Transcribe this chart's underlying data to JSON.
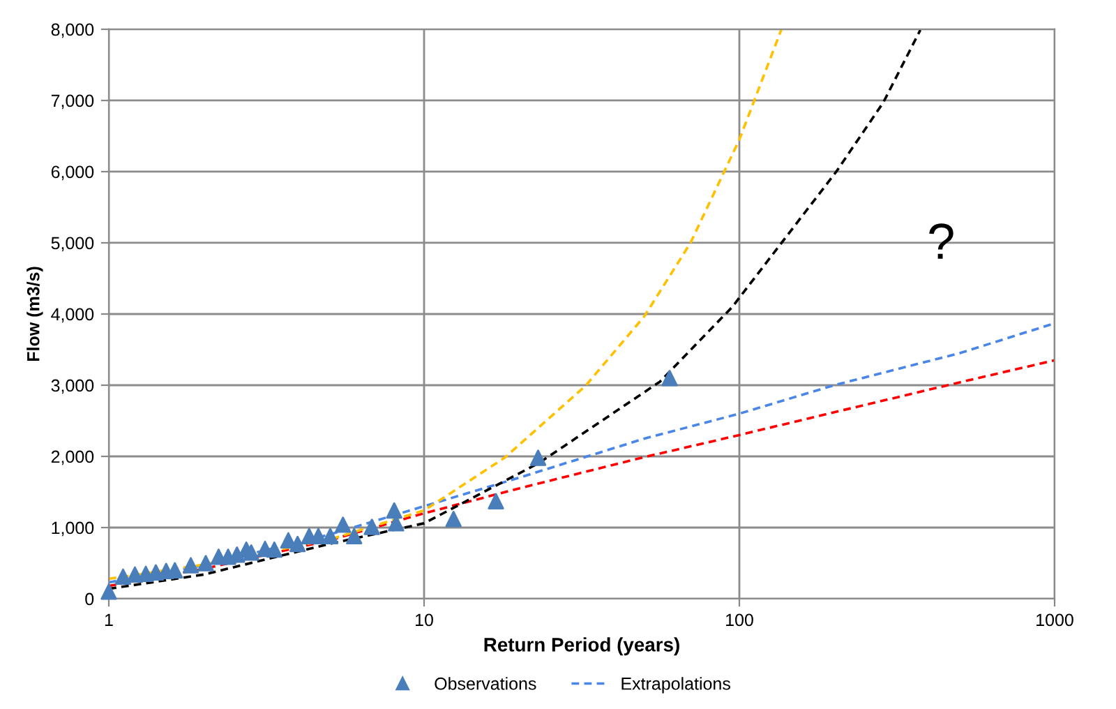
{
  "chart_data": {
    "type": "scatter",
    "xlabel": "Return Period (years)",
    "ylabel": "Flow (m3/s)",
    "log": "x",
    "xlim": [
      1,
      1000
    ],
    "xticks": [
      1,
      10,
      100,
      1000
    ],
    "ylim": [
      0,
      8000
    ],
    "yticks": [
      0,
      {
        "value": 1000,
        "label": "1,000"
      },
      {
        "value": 2000,
        "label": "2,000"
      },
      {
        "value": 3000,
        "label": "3,000"
      },
      {
        "value": 4000,
        "label": "4,000"
      },
      {
        "value": 5000,
        "label": "5,000"
      },
      {
        "value": 6000,
        "label": "6,000"
      },
      {
        "value": 7000,
        "label": "7,000"
      },
      {
        "value": 8000,
        "label": "8,000"
      }
    ],
    "grid": true,
    "legend": "bottom",
    "annotations": [
      "?"
    ],
    "series": [
      {
        "name": "Observations",
        "marker": "triangle",
        "color": "#4a7ebb",
        "x": [
          1.0,
          1.11,
          1.21,
          1.31,
          1.41,
          1.52,
          1.62,
          1.82,
          2.03,
          2.23,
          2.39,
          2.55,
          2.73,
          2.83,
          3.13,
          3.35,
          3.71,
          3.97,
          4.32,
          4.62,
          5.04,
          5.53,
          6.0,
          6.83,
          8.04,
          8.15,
          12.4,
          16.9,
          23.0,
          60.1
        ],
        "values": [
          100,
          310,
          340,
          350,
          370,
          390,
          400,
          470,
          500,
          590,
          590,
          620,
          690,
          650,
          700,
          690,
          820,
          770,
          880,
          880,
          880,
          1040,
          880,
          1010,
          1240,
          1060,
          1120,
          1370,
          1980,
          3100
        ]
      },
      {
        "name": "Extrapolations",
        "type": "line",
        "line_style": "dashed",
        "marker": "none",
        "color": "#4a86e8",
        "x": [
          1,
          2,
          5,
          10,
          20,
          50,
          100,
          200,
          500,
          1000
        ],
        "values": [
          230,
          470,
          900,
          1300,
          1700,
          2250,
          2600,
          3000,
          3450,
          3870
        ]
      },
      {
        "type": "line",
        "line_style": "dashed",
        "marker": "none",
        "color": "#ff0000",
        "x": [
          1,
          2,
          5,
          10,
          20,
          50,
          100,
          200,
          500,
          1000
        ],
        "values": [
          180,
          420,
          820,
          1200,
          1550,
          1990,
          2300,
          2620,
          3040,
          3350
        ]
      },
      {
        "type": "line",
        "line_style": "dashed",
        "marker": "none",
        "color": "#ffc000",
        "x": [
          1,
          2,
          5,
          10,
          18,
          32.5,
          50,
          70,
          100,
          136
        ],
        "values": [
          280,
          480,
          830,
          1240,
          1980,
          2990,
          3970,
          5000,
          6450,
          8000
        ]
      },
      {
        "type": "line",
        "line_style": "dashed",
        "marker": "none",
        "color": "#000000",
        "x": [
          1,
          2,
          5,
          10,
          23.2,
          56,
          95,
          203,
          286,
          375
        ],
        "values": [
          140,
          340,
          770,
          1060,
          1910,
          3050,
          4100,
          6000,
          6970,
          7990
        ]
      }
    ]
  }
}
